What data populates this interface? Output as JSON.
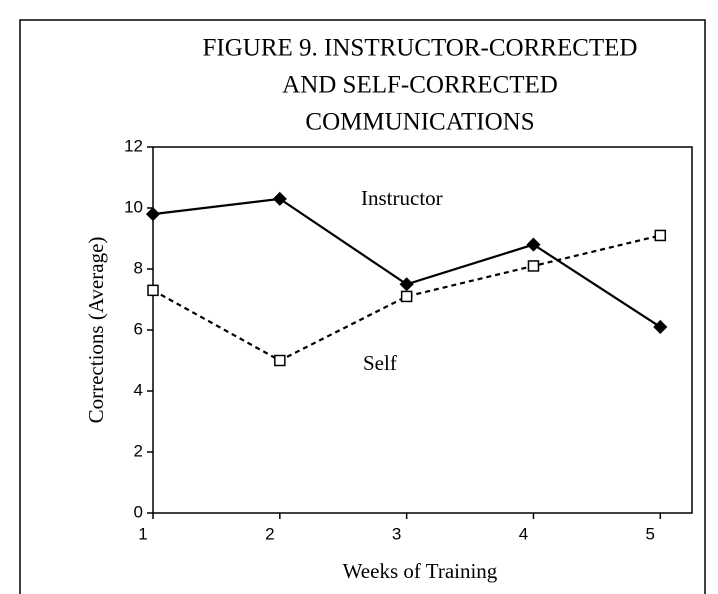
{
  "chart_data": {
    "type": "line",
    "title": [
      "FIGURE 9.  INSTRUCTOR-CORRECTED",
      "AND SELF-CORRECTED",
      "COMMUNICATIONS"
    ],
    "x_label": "Weeks of Training",
    "y_label": "Corrections (Average)",
    "x": [
      1,
      2,
      3,
      4,
      5
    ],
    "series": [
      {
        "name": "Instructor",
        "color": "#000000",
        "marker": "diamond",
        "dash": "solid",
        "values": [
          9.8,
          10.3,
          7.5,
          8.8,
          6.1
        ]
      },
      {
        "name": "Self",
        "color": "#000000",
        "marker": "square",
        "dash": "dotted",
        "values": [
          7.3,
          5.0,
          7.1,
          8.1,
          9.1
        ]
      }
    ],
    "xlim": [
      1,
      5.25
    ],
    "xticks": [
      1,
      2,
      3,
      4,
      5
    ],
    "ylim": [
      0,
      12
    ],
    "yticks": [
      0,
      2,
      4,
      6,
      8,
      10,
      12
    ],
    "grid": false
  }
}
